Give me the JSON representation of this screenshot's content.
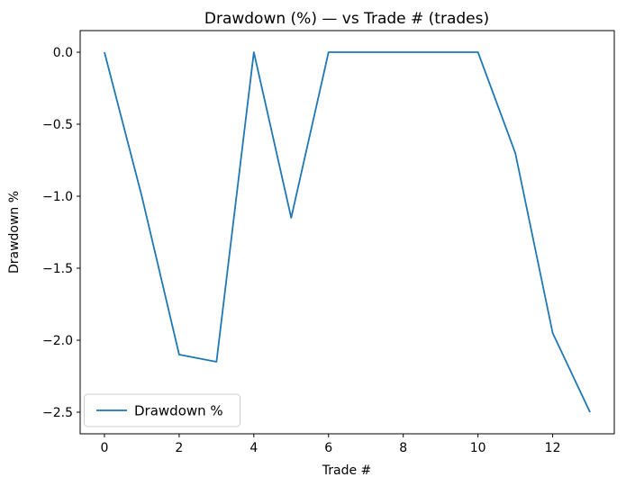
{
  "figure": {
    "background": "#ffffff",
    "spine_color": "#000000",
    "text_color": "#000000"
  },
  "chart_data": {
    "type": "line",
    "title": "Drawdown (%) — vs Trade # (trades)",
    "xlabel": "Trade #",
    "ylabel": "Drawdown %",
    "x": [
      0,
      1,
      2,
      3,
      4,
      5,
      6,
      7,
      8,
      9,
      10,
      11,
      12,
      13
    ],
    "series": [
      {
        "name": "Drawdown %",
        "color": "#1f77b4",
        "values": [
          0.0,
          -1.0,
          -2.1,
          -2.15,
          0.0,
          -1.15,
          0.0,
          0.0,
          0.0,
          0.0,
          0.0,
          -0.7,
          -1.95,
          -2.5
        ]
      }
    ],
    "xlim": [
      -0.65,
      13.65
    ],
    "ylim": [
      -2.65,
      0.15
    ],
    "xticks": [
      0,
      2,
      4,
      6,
      8,
      10,
      12
    ],
    "xticklabels": [
      "0",
      "2",
      "4",
      "6",
      "8",
      "10",
      "12"
    ],
    "yticks": [
      0.0,
      -0.5,
      -1.0,
      -1.5,
      -2.0,
      -2.5
    ],
    "yticklabels": [
      "0.0",
      "−0.5",
      "−1.0",
      "−1.5",
      "−2.0",
      "−2.5"
    ],
    "grid": false,
    "legend": {
      "position": "lower left",
      "entries": [
        "Drawdown %"
      ],
      "border_color": "#cccccc",
      "fill": "rgba(255,255,255,0.8)"
    }
  }
}
